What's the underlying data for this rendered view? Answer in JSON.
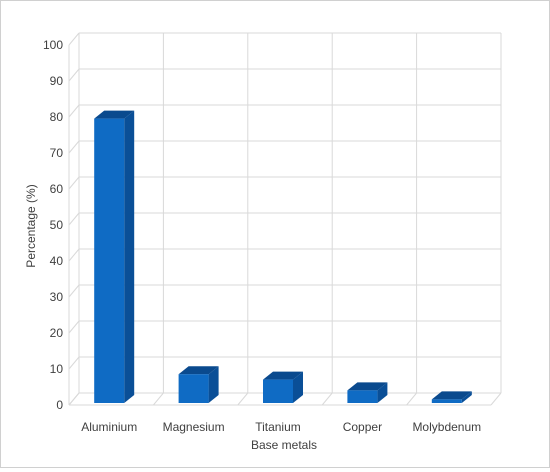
{
  "chart_data": {
    "type": "bar",
    "style": "3d-column",
    "categories": [
      "Aluminium",
      "Magnesium",
      "Titanium",
      "Copper",
      "Molybdenum"
    ],
    "values": [
      79,
      8,
      6.5,
      3.5,
      1
    ],
    "xlabel": "Base metals",
    "ylabel": "Percentage (%)",
    "ylim": [
      0,
      100
    ],
    "yticks": [
      0,
      10,
      20,
      30,
      40,
      50,
      60,
      70,
      80,
      90,
      100
    ],
    "grid": true,
    "legend": "none",
    "colors": {
      "front": "#0f6bc4",
      "side": "#0a4f97",
      "top": "#0a4a8e",
      "grid": "#d9d9d9"
    }
  }
}
